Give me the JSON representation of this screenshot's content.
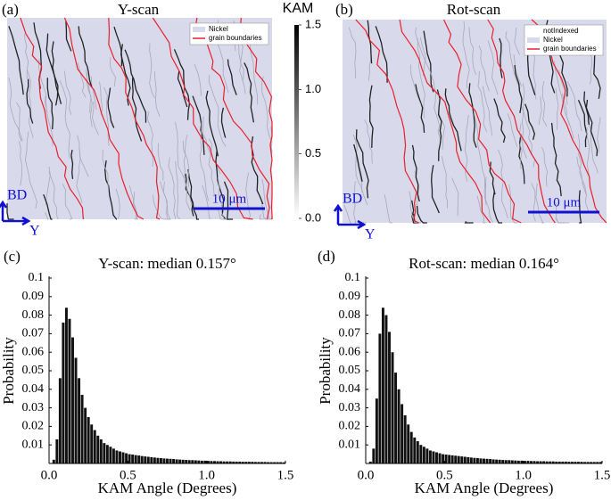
{
  "maps": [
    {
      "panel_label": "(a)",
      "title": "Y-scan",
      "legend": [
        "Nickel",
        "grain boundaries"
      ],
      "scale_bar": "10 μm",
      "axes": [
        "BD",
        "Y"
      ]
    },
    {
      "panel_label": "(b)",
      "title": "Rot-scan",
      "legend": [
        "notIndexed",
        "Nickel",
        "grain boundaries"
      ],
      "scale_bar": "10 μm",
      "axes": [
        "BD",
        "Y"
      ]
    }
  ],
  "colorbar": {
    "label": "KAM",
    "lim": [
      0,
      1.5
    ],
    "ticks": [
      1.5,
      {
        "value": 1,
        "label": "1.0"
      },
      0.5,
      {
        "value": 0,
        "label": "0.0"
      }
    ]
  },
  "chart_data": [
    {
      "type": "histogram",
      "panel_label": "(c)",
      "title": "Y-scan: median 0.157°",
      "x_label": "KAM Angle (Degrees)",
      "y_label": "Probability",
      "color": "#111111",
      "bins": [
        0.02,
        0.04,
        0.06,
        0.08,
        0.1,
        0.12,
        0.14,
        0.16,
        0.18,
        0.2,
        0.22,
        0.24,
        0.26,
        0.28,
        0.3,
        0.32,
        0.34,
        0.36,
        0.38,
        0.4,
        0.42,
        0.44,
        0.46,
        0.48,
        0.5,
        0.52,
        0.54,
        0.56,
        0.58,
        0.6,
        0.62,
        0.64,
        0.66,
        0.68,
        0.7,
        0.72,
        0.74,
        0.76,
        0.78,
        0.8,
        0.82,
        0.84,
        0.86,
        0.88,
        0.9,
        0.92,
        0.94,
        0.96,
        0.98,
        1,
        1.02,
        1.04,
        1.06,
        1.08,
        1.1,
        1.12,
        1.14,
        1.16,
        1.18,
        1.2,
        1.22,
        1.24,
        1.26,
        1.28,
        1.3,
        1.32,
        1.34,
        1.36,
        1.38,
        1.4,
        1.42,
        1.44,
        1.46,
        1.48,
        1.5
      ],
      "values": [
        0.002,
        0.013,
        0.046,
        0.076,
        0.084,
        0.078,
        0.068,
        0.057,
        0.046,
        0.037,
        0.03,
        0.025,
        0.021,
        0.018,
        0.015,
        0.013,
        0.011,
        0.01,
        0.009,
        0.008,
        0.007,
        0.0065,
        0.006,
        0.0055,
        0.005,
        0.0048,
        0.0045,
        0.0043,
        0.004,
        0.0038,
        0.0036,
        0.0034,
        0.0032,
        0.003,
        0.0029,
        0.0027,
        0.0026,
        0.0025,
        0.0024,
        0.0022,
        0.0021,
        0.002,
        0.0019,
        0.0018,
        0.0018,
        0.0017,
        0.0016,
        0.0015,
        0.0015,
        0.0014,
        0.0013,
        0.0013,
        0.0012,
        0.0012,
        0.0011,
        0.0011,
        0.0011,
        0.001,
        0.001,
        0.001,
        0.0009,
        0.0009,
        0.0009,
        0.0009,
        0.0008,
        0.0008,
        0.0008,
        0.0008,
        0.0007,
        0.0007,
        0.0007,
        0.0007,
        0.0007,
        0.0006
      ],
      "xlim": [
        0,
        1.5
      ],
      "ylim": [
        0,
        0.1
      ],
      "xticks": [
        {
          "value": 0,
          "label": "0.0"
        },
        0.5,
        {
          "value": 1,
          "label": "1.0"
        },
        1.5
      ],
      "yticks": [
        0.01,
        0.02,
        0.03,
        0.04,
        0.05,
        0.06,
        0.07,
        0.08,
        0.09,
        0.1
      ]
    },
    {
      "type": "histogram",
      "panel_label": "(d)",
      "title": "Rot-scan: median 0.164°",
      "x_label": "KAM Angle (Degrees)",
      "y_label": "Probability",
      "color": "#111111",
      "bins": [
        0.02,
        0.04,
        0.06,
        0.08,
        0.1,
        0.12,
        0.14,
        0.16,
        0.18,
        0.2,
        0.22,
        0.24,
        0.26,
        0.28,
        0.3,
        0.32,
        0.34,
        0.36,
        0.38,
        0.4,
        0.42,
        0.44,
        0.46,
        0.48,
        0.5,
        0.52,
        0.54,
        0.56,
        0.58,
        0.6,
        0.62,
        0.64,
        0.66,
        0.68,
        0.7,
        0.72,
        0.74,
        0.76,
        0.78,
        0.8,
        0.82,
        0.84,
        0.86,
        0.88,
        0.9,
        0.92,
        0.94,
        0.96,
        0.98,
        1,
        1.02,
        1.04,
        1.06,
        1.08,
        1.1,
        1.12,
        1.14,
        1.16,
        1.18,
        1.2,
        1.22,
        1.24,
        1.26,
        1.28,
        1.3,
        1.32,
        1.34,
        1.36,
        1.38,
        1.4,
        1.42,
        1.44,
        1.46,
        1.48,
        1.5
      ],
      "values": [
        0.001,
        0.008,
        0.035,
        0.07,
        0.084,
        0.08,
        0.071,
        0.06,
        0.049,
        0.04,
        0.032,
        0.026,
        0.021,
        0.017,
        0.014,
        0.012,
        0.01,
        0.009,
        0.008,
        0.007,
        0.0065,
        0.006,
        0.0055,
        0.005,
        0.0048,
        0.0046,
        0.0044,
        0.0042,
        0.004,
        0.0038,
        0.0036,
        0.0034,
        0.0032,
        0.003,
        0.0029,
        0.0027,
        0.0026,
        0.0025,
        0.0024,
        0.0022,
        0.0021,
        0.002,
        0.0019,
        0.0018,
        0.0018,
        0.0017,
        0.0016,
        0.0015,
        0.0015,
        0.0014,
        0.0014,
        0.0013,
        0.0013,
        0.0012,
        0.0012,
        0.0012,
        0.0011,
        0.0011,
        0.0011,
        0.001,
        0.001,
        0.001,
        0.001,
        0.0009,
        0.0009,
        0.0009,
        0.0009,
        0.0009,
        0.0008,
        0.0008,
        0.0008,
        0.0008,
        0.0008,
        0.0008
      ],
      "xlim": [
        0,
        1.5
      ],
      "ylim": [
        0,
        0.1
      ],
      "xticks": [
        {
          "value": 0,
          "label": "0.0"
        },
        0.5,
        {
          "value": 1,
          "label": "1.0"
        },
        1.5
      ],
      "yticks": [
        0.01,
        0.02,
        0.03,
        0.04,
        0.05,
        0.06,
        0.07,
        0.08,
        0.09,
        0.1
      ]
    }
  ]
}
